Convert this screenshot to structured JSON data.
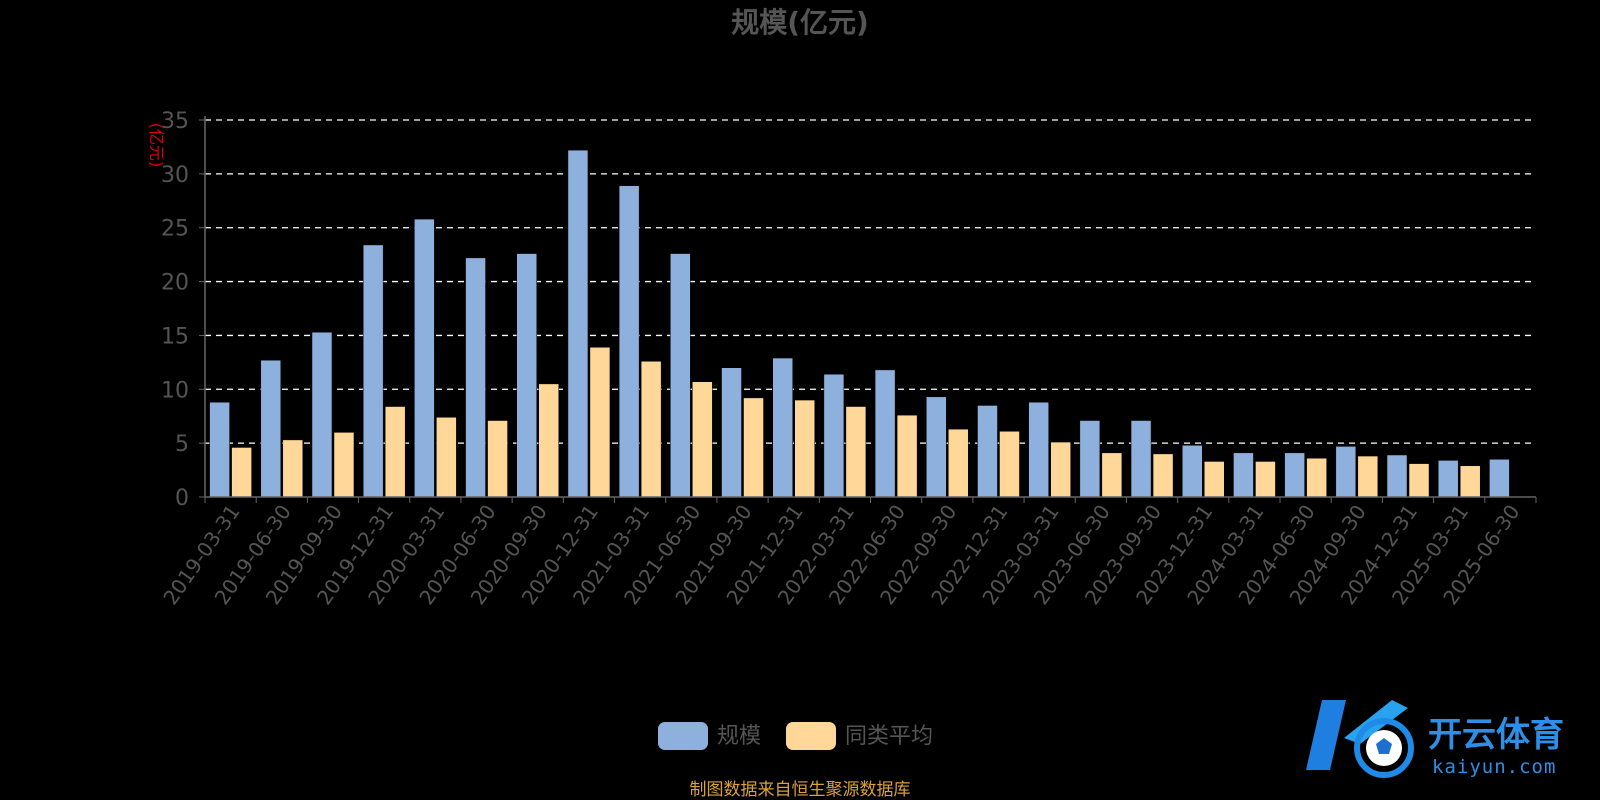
{
  "chart_data": {
    "type": "bar",
    "title": "规模(亿元)",
    "ylabel": "(亿元)",
    "ylim": [
      0,
      35
    ],
    "yticks": [
      0,
      5,
      10,
      15,
      20,
      25,
      30,
      35
    ],
    "grid": true,
    "legend_position": "bottom",
    "categories": [
      "2019-03-31",
      "2019-06-30",
      "2019-09-30",
      "2019-12-31",
      "2020-03-31",
      "2020-06-30",
      "2020-09-30",
      "2020-12-31",
      "2021-03-31",
      "2021-06-30",
      "2021-09-30",
      "2021-12-31",
      "2022-03-31",
      "2022-06-30",
      "2022-09-30",
      "2022-12-31",
      "2023-03-31",
      "2023-06-30",
      "2023-09-30",
      "2023-12-31",
      "2024-03-31",
      "2024-06-30",
      "2024-09-30",
      "2024-12-31",
      "2025-03-31",
      "2025-06-30"
    ],
    "series": [
      {
        "name": "规模",
        "color": "#8eb0dc",
        "values": [
          8.8,
          12.7,
          15.3,
          23.4,
          25.8,
          22.2,
          22.6,
          32.2,
          28.9,
          22.6,
          12.0,
          12.9,
          11.4,
          11.8,
          9.3,
          8.5,
          8.8,
          7.1,
          7.1,
          4.8,
          4.1,
          4.1,
          4.7,
          3.9,
          3.4,
          3.5
        ]
      },
      {
        "name": "同类平均",
        "color": "#ffd899",
        "values": [
          4.6,
          5.3,
          6.0,
          8.4,
          7.4,
          7.1,
          10.5,
          13.9,
          12.6,
          10.7,
          9.2,
          9.0,
          8.4,
          7.6,
          6.3,
          6.1,
          5.1,
          4.1,
          4.0,
          3.3,
          3.3,
          3.6,
          3.8,
          3.1,
          2.9,
          null
        ]
      }
    ]
  },
  "source_text": "制图数据来自恒生聚源数据库",
  "watermark": {
    "brand": "开云体育",
    "domain": "kaiyun.com"
  }
}
